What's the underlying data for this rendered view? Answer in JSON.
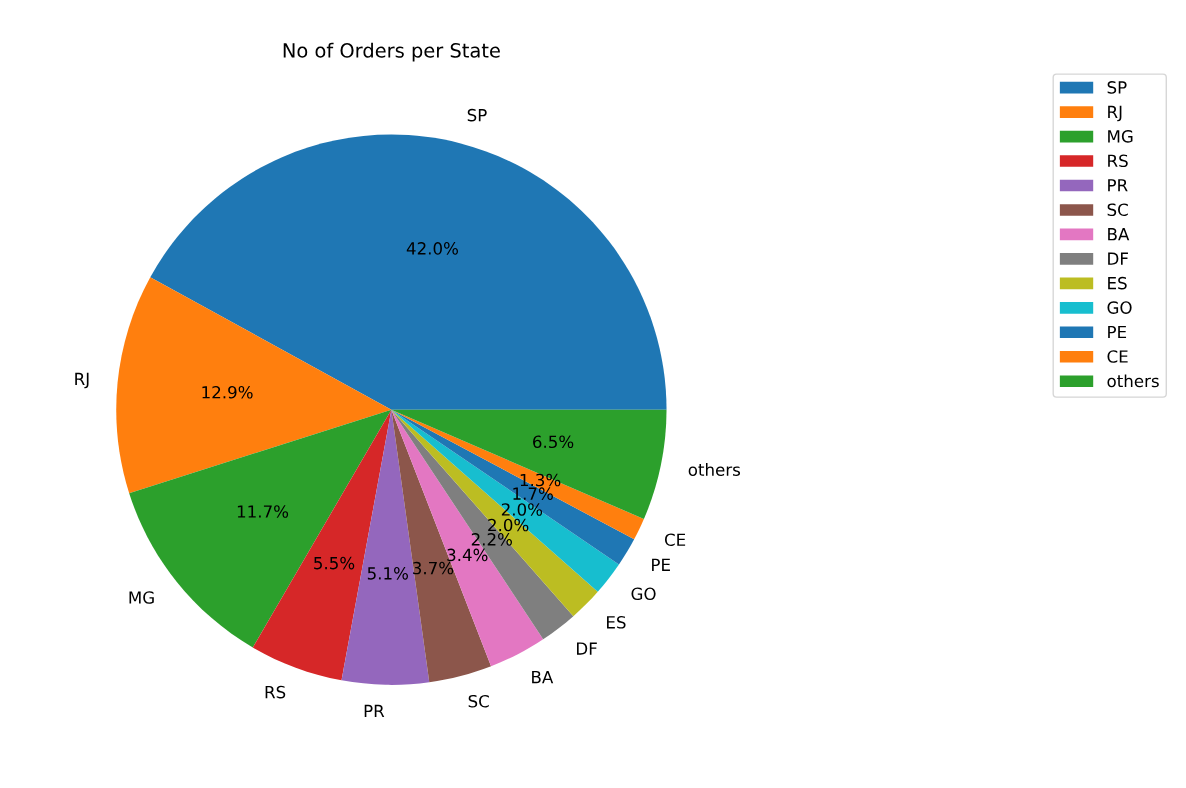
{
  "chart_data": {
    "type": "pie",
    "title": "No of Orders per State",
    "categories": [
      "SP",
      "RJ",
      "MG",
      "RS",
      "PR",
      "SC",
      "BA",
      "DF",
      "ES",
      "GO",
      "PE",
      "CE",
      "others"
    ],
    "values": [
      42.0,
      12.9,
      11.7,
      5.5,
      5.1,
      3.7,
      3.4,
      2.2,
      2.0,
      2.0,
      1.7,
      1.3,
      6.5
    ],
    "value_labels": [
      "42.0%",
      "12.9%",
      "11.7%",
      "5.5%",
      "5.1%",
      "3.7%",
      "3.4%",
      "2.2%",
      "2.0%",
      "2.0%",
      "1.7%",
      "1.3%",
      "6.5%"
    ],
    "colors": [
      "#1f77b4",
      "#ff7f0e",
      "#2ca02c",
      "#d62728",
      "#9467bd",
      "#8c564b",
      "#e377c2",
      "#7f7f7f",
      "#bcbd22",
      "#17becf",
      "#1f77b4",
      "#ff7f0e",
      "#2ca02c"
    ],
    "legend": "top right"
  }
}
